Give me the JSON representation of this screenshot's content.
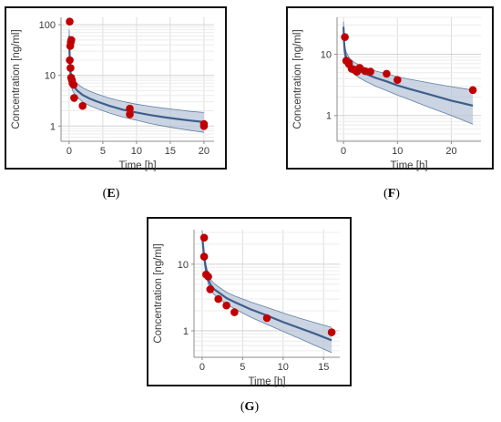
{
  "colors": {
    "frame": "#111111",
    "grid": "#dddddd",
    "axis": "#8c8c8c",
    "band_fill": "#b9c6d8",
    "band_edge": "#5f7fa3",
    "line": "#3d5f8c",
    "point": "#c00000"
  },
  "chart_data": [
    {
      "type": "scatter",
      "caption_left": "(",
      "caption_letter": "E",
      "caption_right": ")",
      "xlabel": "Time [h]",
      "ylabel": "Concentration [ng/ml]",
      "yscale": "log",
      "xlim": [
        -1.2,
        21.5
      ],
      "ylim": [
        0.5,
        140
      ],
      "xticks": [
        0,
        5,
        10,
        15,
        20
      ],
      "xtick_labels": [
        "0",
        "5",
        "10",
        "15",
        "20"
      ],
      "yticks": [
        1,
        10,
        100
      ],
      "ytick_labels": [
        "1",
        "10",
        "100"
      ],
      "observed": {
        "x": [
          0.08,
          0.17,
          0.25,
          0.33,
          0.1,
          0.2,
          0.3,
          0.42,
          0.5,
          0.67,
          0.75,
          2.0,
          9.0,
          9.0,
          20.0,
          20.0
        ],
        "y": [
          115,
          38,
          45,
          50,
          20,
          14,
          9,
          8,
          7,
          6.5,
          3.6,
          2.5,
          2.2,
          1.7,
          1.1,
          1.0
        ]
      },
      "model": {
        "x": [
          0.0,
          0.05,
          0.15,
          0.3,
          0.5,
          0.8,
          1.2,
          2,
          3,
          4,
          6,
          8,
          10,
          12,
          14,
          16,
          18,
          20
        ],
        "median": [
          60,
          30,
          14,
          8.5,
          6.8,
          5.8,
          5.0,
          4.1,
          3.5,
          3.1,
          2.5,
          2.1,
          1.85,
          1.65,
          1.5,
          1.38,
          1.28,
          1.2
        ],
        "lower": [
          45,
          22,
          10,
          6.3,
          5.0,
          4.3,
          3.7,
          3.0,
          2.55,
          2.25,
          1.8,
          1.5,
          1.3,
          1.12,
          1.0,
          0.9,
          0.82,
          0.75
        ],
        "upper": [
          80,
          40,
          19,
          11.5,
          9.2,
          7.9,
          6.9,
          5.7,
          4.9,
          4.35,
          3.55,
          3.05,
          2.7,
          2.45,
          2.25,
          2.1,
          1.95,
          1.85
        ]
      }
    },
    {
      "type": "scatter",
      "caption_left": "(",
      "caption_letter": "F",
      "caption_right": ")",
      "xlabel": "Time [h]",
      "ylabel": "Concentration [ng/ml]",
      "yscale": "log",
      "xlim": [
        -1.2,
        25.5
      ],
      "ylim": [
        0.38,
        40
      ],
      "xticks": [
        0,
        10,
        20
      ],
      "xtick_labels": [
        "0",
        "10",
        "20"
      ],
      "yticks": [
        1,
        10
      ],
      "ytick_labels": [
        "1",
        "10"
      ],
      "observed": {
        "x": [
          0.25,
          0.5,
          1.0,
          1.0,
          1.5,
          2.0,
          2.5,
          3.0,
          4.0,
          5.0,
          8.0,
          10.0,
          24.0
        ],
        "y": [
          19,
          7.8,
          7.2,
          6.9,
          5.8,
          5.6,
          5.2,
          6.0,
          5.3,
          5.2,
          4.8,
          3.8,
          2.6
        ]
      },
      "model": {
        "x": [
          0.0,
          0.1,
          0.25,
          0.5,
          1,
          1.5,
          2,
          3,
          4,
          6,
          8,
          10,
          12,
          16,
          20,
          24
        ],
        "median": [
          28,
          16,
          11,
          8.8,
          7.2,
          6.5,
          6.0,
          5.3,
          4.8,
          4.1,
          3.6,
          3.1,
          2.75,
          2.2,
          1.75,
          1.45
        ],
        "lower": [
          22,
          13,
          8.8,
          7.0,
          5.7,
          5.1,
          4.7,
          4.1,
          3.65,
          3.0,
          2.55,
          2.15,
          1.85,
          1.35,
          1.0,
          0.72
        ],
        "upper": [
          34,
          20,
          13.5,
          10.8,
          8.9,
          8.0,
          7.4,
          6.6,
          6.0,
          5.3,
          4.8,
          4.3,
          3.95,
          3.4,
          2.95,
          2.6
        ]
      }
    },
    {
      "type": "scatter",
      "caption_left": "(",
      "caption_letter": "G",
      "caption_right": ")",
      "xlabel": "Time [h]",
      "ylabel": "Concentration [ng/ml]",
      "yscale": "log",
      "xlim": [
        -1.0,
        17.0
      ],
      "ylim": [
        0.4,
        33
      ],
      "xticks": [
        0,
        5,
        10,
        15
      ],
      "xtick_labels": [
        "0",
        "5",
        "10",
        "15"
      ],
      "yticks": [
        1,
        10
      ],
      "ytick_labels": [
        "1",
        "10"
      ],
      "observed": {
        "x": [
          0.25,
          0.25,
          0.5,
          0.75,
          1.0,
          2.0,
          3.0,
          4.0,
          8.0,
          16.0
        ],
        "y": [
          25,
          13,
          7.0,
          6.5,
          4.2,
          3.0,
          2.4,
          1.9,
          1.55,
          0.95
        ]
      },
      "model": {
        "x": [
          0.0,
          0.1,
          0.25,
          0.5,
          0.75,
          1,
          1.5,
          2,
          3,
          4,
          6,
          8,
          10,
          12,
          14,
          16
        ],
        "median": [
          27,
          20,
          13,
          8.0,
          6.0,
          5.0,
          4.2,
          3.8,
          3.1,
          2.7,
          2.1,
          1.7,
          1.35,
          1.1,
          0.9,
          0.72
        ],
        "lower": [
          23,
          17,
          11,
          6.8,
          5.0,
          4.1,
          3.5,
          3.1,
          2.5,
          2.15,
          1.6,
          1.25,
          0.98,
          0.77,
          0.6,
          0.47
        ],
        "upper": [
          32,
          24,
          15.5,
          9.6,
          7.2,
          6.0,
          5.1,
          4.6,
          3.8,
          3.35,
          2.7,
          2.25,
          1.85,
          1.55,
          1.32,
          1.12
        ]
      }
    }
  ]
}
